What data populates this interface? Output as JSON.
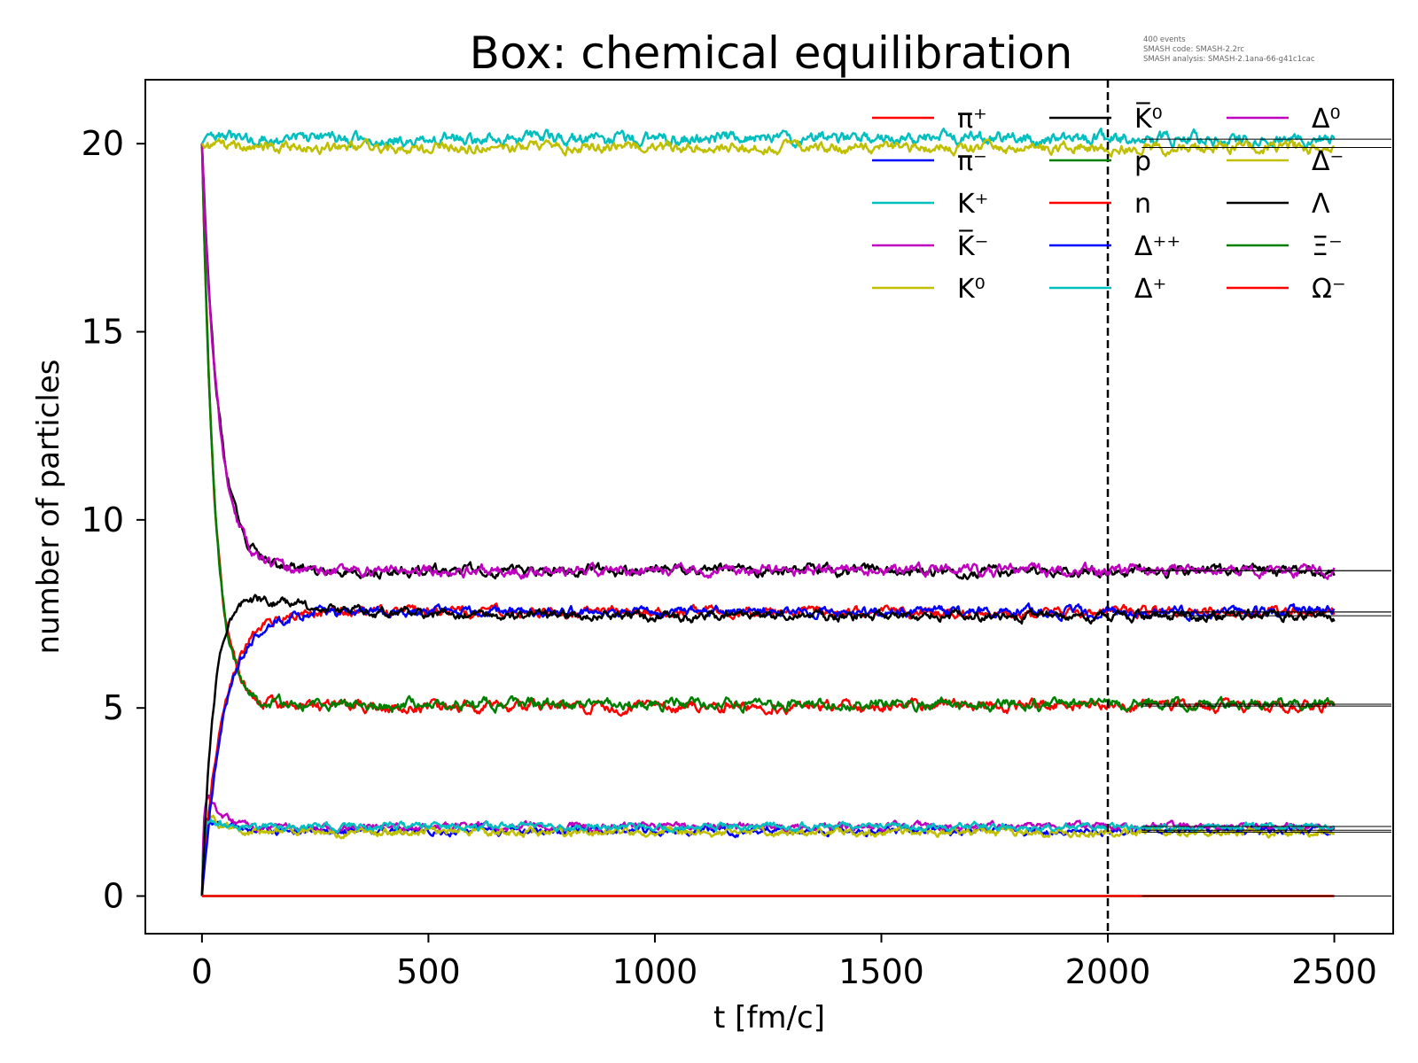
{
  "chart_data": {
    "type": "line",
    "title": "Box: chemical equilibration",
    "xlabel": "t [fm/c]",
    "ylabel": "number of particles",
    "xlim": [
      -125,
      2630
    ],
    "ylim": [
      -1,
      21.7
    ],
    "xticks": [
      "0",
      "500",
      "1000",
      "1500",
      "2000",
      "2500"
    ],
    "yticks": [
      "0",
      "5",
      "10",
      "15",
      "20"
    ],
    "vline_x": 2000,
    "annotation_lines": [
      "400 events",
      "SMASH code:      SMASH-2.2rc",
      "SMASH analysis:  SMASH-2.1ana-66-g41c1cac"
    ],
    "legend_placement": "top-right",
    "legend_columns": 3,
    "grid": false,
    "series": [
      {
        "name": "π⁺",
        "color": "#ff0000",
        "start": 20,
        "eq": 5.05,
        "tau": 28,
        "noise": 0.12,
        "seed": 1
      },
      {
        "name": "π⁻",
        "color": "#0000ff",
        "start": 0,
        "eq": 1.75,
        "tau": 10,
        "noise": 0.09,
        "seed": 2,
        "peak": 2.3
      },
      {
        "name": "K⁺",
        "color": "#00bfbf",
        "start": 20,
        "eq": 20.12,
        "tau": 5,
        "noise": 0.14,
        "seed": 3
      },
      {
        "name": "K̅⁻",
        "color": "#bf00bf",
        "start": 0,
        "eq": 1.85,
        "tau": 10,
        "noise": 0.08,
        "seed": 4,
        "peak": 3.3
      },
      {
        "name": "K⁰",
        "color": "#bfbf00",
        "start": 0,
        "eq": 1.7,
        "tau": 12,
        "noise": 0.09,
        "seed": 5,
        "peak": 2.4
      },
      {
        "name": "K̅⁰",
        "color": "#000000",
        "start": 20,
        "eq": 8.65,
        "tau": 38,
        "noise": 0.12,
        "seed": 6
      },
      {
        "name": "p",
        "color": "#008000",
        "start": 20,
        "eq": 5.1,
        "tau": 28,
        "noise": 0.12,
        "seed": 7
      },
      {
        "name": "n",
        "color": "#ff0000",
        "start": 0,
        "eq": 7.55,
        "tau": 45,
        "noise": 0.11,
        "seed": 8
      },
      {
        "name": "Δ⁺⁺",
        "color": "#0000ff",
        "start": 0,
        "eq": 7.55,
        "tau": 48,
        "noise": 0.11,
        "seed": 9
      },
      {
        "name": "Δ⁺",
        "color": "#00bfbf",
        "start": 0,
        "eq": 1.85,
        "tau": 10,
        "noise": 0.08,
        "seed": 10,
        "peak": 2.2
      },
      {
        "name": "Δ⁰",
        "color": "#bf00bf",
        "start": 20,
        "eq": 8.65,
        "tau": 36,
        "noise": 0.12,
        "seed": 11
      },
      {
        "name": "Δ⁻",
        "color": "#bfbf00",
        "start": 20,
        "eq": 19.9,
        "tau": 5,
        "noise": 0.12,
        "seed": 12
      },
      {
        "name": "Λ",
        "color": "#000000",
        "start": 0,
        "eq": 7.45,
        "tau": 60,
        "noise": 0.11,
        "seed": 13,
        "peak": 8.5
      },
      {
        "name": "Ξ⁻",
        "color": "#008000",
        "start": 0,
        "eq": 0,
        "tau": 1,
        "noise": 0,
        "seed": 14
      },
      {
        "name": "Ω⁻",
        "color": "#ff0000",
        "start": 0,
        "eq": 0,
        "tau": 1,
        "noise": 0,
        "seed": 15
      }
    ]
  }
}
